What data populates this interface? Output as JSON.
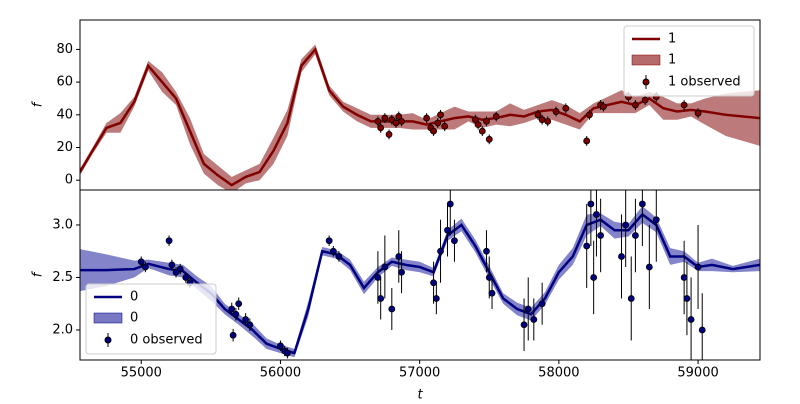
{
  "chart_data": [
    {
      "type": "line",
      "ylabel": "f",
      "xlim": [
        54560,
        59445
      ],
      "ylim": [
        -6,
        98
      ],
      "yticks": [
        0,
        20,
        40,
        60,
        80
      ],
      "legend": "upper right",
      "x": [
        54560,
        54650,
        54750,
        54850,
        54950,
        55050,
        55150,
        55250,
        55350,
        55450,
        55550,
        55650,
        55750,
        55850,
        55950,
        56050,
        56150,
        56250,
        56350,
        56450,
        56550,
        56650,
        56750,
        56850,
        56950,
        57050,
        57150,
        57250,
        57350,
        57450,
        57550,
        57650,
        57750,
        57850,
        57950,
        58050,
        58150,
        58250,
        58350,
        58450,
        58550,
        58650,
        58750,
        58850,
        58950,
        59050,
        59200,
        59445
      ],
      "series": [
        {
          "name": "1",
          "color": "#800000",
          "values": [
            5,
            18,
            32,
            35,
            48,
            70,
            60,
            50,
            30,
            10,
            3,
            -3,
            2,
            5,
            18,
            35,
            70,
            80,
            55,
            45,
            40,
            36,
            36,
            36,
            36,
            34,
            36,
            38,
            39,
            37,
            38,
            40,
            39,
            42,
            43,
            40,
            36,
            44,
            46,
            48,
            46,
            50,
            44,
            42,
            43,
            42,
            40,
            38
          ]
        }
      ],
      "band": {
        "name": "1",
        "color": "#b56b6b",
        "lower": [
          3,
          16,
          29,
          29,
          45,
          67,
          54,
          46,
          22,
          4,
          -3,
          -8,
          -2,
          0,
          10,
          27,
          66,
          77,
          52,
          42,
          36,
          32,
          32,
          32,
          31,
          31,
          31,
          31,
          36,
          32,
          34,
          33,
          35,
          38,
          37,
          34,
          31,
          41,
          41,
          41,
          41,
          46,
          37,
          37,
          39,
          34,
          27,
          21
        ],
        "upper": [
          7,
          20,
          35,
          41,
          51,
          73,
          66,
          54,
          38,
          16,
          9,
          2,
          6,
          10,
          26,
          43,
          74,
          83,
          58,
          48,
          44,
          40,
          40,
          40,
          41,
          37,
          41,
          45,
          42,
          42,
          42,
          47,
          43,
          46,
          49,
          46,
          41,
          47,
          51,
          55,
          51,
          54,
          51,
          47,
          47,
          50,
          53,
          55
        ]
      },
      "observed": {
        "name": "1 observed",
        "color": "#800000",
        "x": [
          56700,
          56720,
          56750,
          56780,
          56800,
          56830,
          56850,
          56870,
          57050,
          57080,
          57100,
          57130,
          57150,
          57180,
          57400,
          57420,
          57450,
          57480,
          57500,
          57550,
          57850,
          57880,
          57920,
          57980,
          58050,
          58200,
          58220,
          58300,
          58320,
          58500,
          58550,
          58620,
          58700,
          58900,
          59000
        ],
        "values": [
          36,
          32,
          38,
          28,
          37,
          35,
          39,
          36,
          38,
          32,
          30,
          35,
          40,
          33,
          37,
          34,
          30,
          36,
          25,
          39,
          40,
          37,
          36,
          42,
          44,
          24,
          40,
          46,
          45,
          51,
          46,
          49,
          51,
          46,
          41
        ],
        "errors": [
          3,
          3,
          3,
          3,
          3,
          3,
          3,
          3,
          3,
          3,
          3,
          3,
          3,
          3,
          3,
          3,
          3,
          3,
          3,
          3,
          3,
          3,
          3,
          3,
          3,
          3,
          3,
          3,
          3,
          3,
          3,
          3,
          3,
          3,
          3
        ]
      }
    },
    {
      "type": "line",
      "ylabel": "f",
      "xlabel": "t",
      "xlim": [
        54560,
        59445
      ],
      "ylim": [
        1.714,
        3.333
      ],
      "legend": "lower left",
      "yticks": [
        {
          "value": 2,
          "label": "2.0"
        },
        2.5,
        {
          "value": 3,
          "label": "3.0"
        }
      ],
      "xticks": [
        55000,
        56000,
        57000,
        58000,
        59000
      ],
      "x": [
        54560,
        54750,
        54950,
        55050,
        55200,
        55300,
        55400,
        55500,
        55600,
        55700,
        55800,
        55900,
        56000,
        56100,
        56200,
        56300,
        56400,
        56500,
        56600,
        56700,
        56800,
        56900,
        57000,
        57100,
        57200,
        57300,
        57400,
        57500,
        57600,
        57700,
        57800,
        57900,
        58000,
        58100,
        58200,
        58300,
        58400,
        58500,
        58600,
        58700,
        58800,
        58900,
        59000,
        59100,
        59250,
        59445
      ],
      "series": [
        {
          "name": "0",
          "color": "#000080",
          "values": [
            2.57,
            2.57,
            2.58,
            2.63,
            2.58,
            2.56,
            2.45,
            2.35,
            2.2,
            2.1,
            2.0,
            1.87,
            1.82,
            1.78,
            2.2,
            2.75,
            2.72,
            2.62,
            2.4,
            2.55,
            2.65,
            2.62,
            2.6,
            2.55,
            2.9,
            3.0,
            2.8,
            2.55,
            2.3,
            2.2,
            2.15,
            2.3,
            2.55,
            2.7,
            3.0,
            3.05,
            2.95,
            2.95,
            3.1,
            3.0,
            2.7,
            2.7,
            2.6,
            2.62,
            2.58,
            2.62
          ]
        }
      ],
      "band": {
        "name": "0",
        "color": "#7777c4",
        "lower": [
          2.37,
          2.42,
          2.5,
          2.59,
          2.52,
          2.5,
          2.39,
          2.28,
          2.15,
          2.05,
          1.94,
          1.82,
          1.78,
          1.74,
          2.13,
          2.71,
          2.68,
          2.57,
          2.34,
          2.5,
          2.61,
          2.57,
          2.55,
          2.51,
          2.85,
          2.94,
          2.74,
          2.49,
          2.25,
          2.14,
          2.09,
          2.24,
          2.48,
          2.62,
          2.9,
          2.99,
          2.87,
          2.89,
          3.02,
          2.93,
          2.62,
          2.65,
          2.56,
          2.56,
          2.55,
          2.56
        ],
        "upper": [
          2.77,
          2.72,
          2.66,
          2.67,
          2.64,
          2.62,
          2.51,
          2.42,
          2.25,
          2.15,
          2.06,
          1.92,
          1.86,
          1.82,
          2.27,
          2.79,
          2.76,
          2.67,
          2.46,
          2.6,
          2.69,
          2.67,
          2.65,
          2.59,
          2.95,
          3.06,
          2.86,
          2.61,
          2.35,
          2.26,
          2.21,
          2.36,
          2.62,
          2.78,
          3.1,
          3.11,
          3.03,
          3.01,
          3.18,
          3.07,
          2.78,
          2.75,
          2.64,
          2.68,
          2.61,
          2.68
        ]
      },
      "observed": {
        "name": "0 observed",
        "color": "#000080",
        "x": [
          55000,
          55030,
          55200,
          55220,
          55250,
          55280,
          55320,
          55350,
          55650,
          55680,
          55700,
          55750,
          55780,
          55660,
          56000,
          56030,
          56050,
          56350,
          56380,
          56420,
          56700,
          56720,
          56750,
          56800,
          56850,
          56870,
          57100,
          57120,
          57150,
          57200,
          57220,
          57250,
          57480,
          57500,
          57520,
          57750,
          57780,
          57820,
          57880,
          58200,
          58230,
          58250,
          58270,
          58300,
          58450,
          58480,
          58520,
          58550,
          58600,
          58650,
          58700,
          58900,
          58920,
          58950,
          59000,
          59030
        ],
        "values": [
          2.65,
          2.6,
          2.85,
          2.62,
          2.55,
          2.58,
          2.5,
          2.45,
          2.2,
          2.15,
          2.25,
          2.1,
          2.05,
          1.95,
          1.85,
          1.8,
          1.78,
          2.85,
          2.75,
          2.7,
          2.5,
          2.3,
          2.6,
          2.2,
          2.7,
          2.55,
          2.45,
          2.3,
          2.75,
          2.95,
          3.2,
          2.85,
          2.75,
          2.5,
          2.35,
          2.05,
          2.2,
          2.1,
          2.25,
          2.8,
          3.2,
          2.5,
          3.1,
          2.9,
          2.7,
          3.0,
          2.3,
          2.9,
          3.2,
          2.6,
          3.05,
          2.5,
          2.3,
          2.1,
          2.6,
          2.0
        ],
        "errors": [
          0.05,
          0.05,
          0.05,
          0.05,
          0.05,
          0.05,
          0.05,
          0.05,
          0.06,
          0.06,
          0.06,
          0.06,
          0.06,
          0.06,
          0.05,
          0.05,
          0.05,
          0.05,
          0.05,
          0.05,
          0.25,
          0.2,
          0.3,
          0.2,
          0.25,
          0.2,
          0.2,
          0.15,
          0.3,
          0.25,
          0.3,
          0.2,
          0.2,
          0.2,
          0.15,
          0.25,
          0.3,
          0.2,
          0.2,
          0.4,
          0.4,
          0.35,
          0.4,
          0.35,
          0.4,
          0.4,
          0.4,
          0.35,
          0.4,
          0.4,
          0.4,
          0.35,
          0.35,
          0.4,
          0.4,
          0.35
        ]
      }
    }
  ]
}
